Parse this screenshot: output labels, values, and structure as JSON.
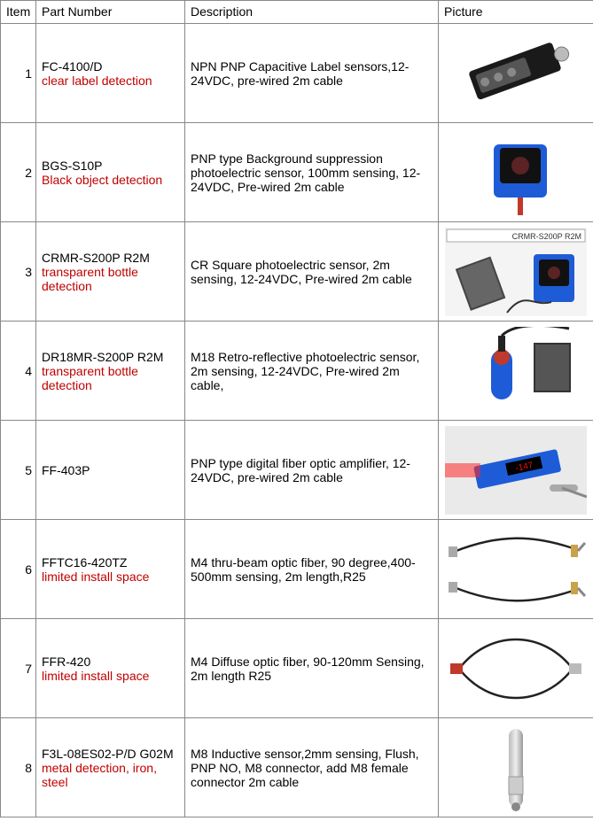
{
  "columns": [
    "Item",
    "Part Number",
    "Description",
    "Picture"
  ],
  "note_color": "#c00000",
  "rows": [
    {
      "item": "1",
      "part": "FC-4100/D",
      "note": "clear label detection",
      "desc": "NPN PNP Capacitive Label sensors,12-24VDC, pre-wired 2m cable",
      "pic": "sensor-rect-black"
    },
    {
      "item": "2",
      "part": "BGS-S10P",
      "note": "Black object detection",
      "desc": "PNP type Background suppression photoelectric sensor, 100mm sensing, 12-24VDC, Pre-wired 2m cable",
      "pic": "sensor-blue-box"
    },
    {
      "item": "3",
      "part": "CRMR-S200P R2M",
      "note": "transparent bottle detection",
      "desc": "CR Square photoelectric sensor, 2m sensing, 12-24VDC, Pre-wired 2m cable",
      "pic": "sensor-reflector-pair",
      "pic_label": "CRMR-S200P R2M"
    },
    {
      "item": "4",
      "part": "DR18MR-S200P R2M",
      "note": "transparent bottle detection",
      "desc": "M18 Retro-reflective photoelectric sensor, 2m sensing, 12-24VDC, Pre-wired 2m cable,",
      "pic": "sensor-m18-blue"
    },
    {
      "item": "5",
      "part": "FF-403P",
      "note": "",
      "desc": "PNP type digital fiber optic amplifier, 12-24VDC, pre-wired 2m cable",
      "pic": "fiber-amplifier"
    },
    {
      "item": "6",
      "part": "FFTC16-420TZ",
      "note": "limited install space",
      "desc": "M4 thru-beam optic fiber, 90 degree,400-500mm sensing, 2m length,R25",
      "pic": "fiber-cable-pair"
    },
    {
      "item": "7",
      "part": "FFR-420",
      "note": "limited install space",
      "desc": "M4 Diffuse optic fiber, 90-120mm Sensing, 2m length R25",
      "pic": "fiber-cable-single"
    },
    {
      "item": "8",
      "part": "F3L-08ES02-P/D G02M",
      "note": "metal detection, iron, steel",
      "desc": "M8 Inductive sensor,2mm sensing, Flush,  PNP NO,  M8 connector, add M8 female connector 2m cable",
      "pic": "inductive-m8"
    }
  ]
}
